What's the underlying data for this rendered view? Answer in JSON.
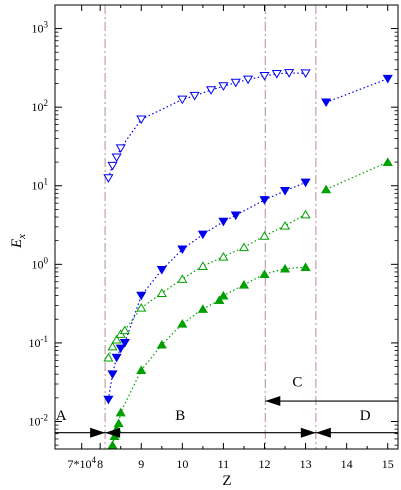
{
  "chart_data": {
    "type": "scatter",
    "title": "",
    "xlabel": "Z",
    "ylabel_main": "E",
    "ylabel_sub": "x",
    "xlim": [
      6.9,
      15.25
    ],
    "ylim_log10": [
      -2.35,
      3.3
    ],
    "log_y": true,
    "grid": false,
    "x_ticks": [
      {
        "value": 7.55,
        "label_main": "7*10",
        "label_sup": "4"
      },
      {
        "value": 8,
        "label_main": "8",
        "label_sup": ""
      },
      {
        "value": 9,
        "label_main": "9",
        "label_sup": ""
      },
      {
        "value": 10,
        "label_main": "10",
        "label_sup": ""
      },
      {
        "value": 11,
        "label_main": "11",
        "label_sup": ""
      },
      {
        "value": 12,
        "label_main": "12",
        "label_sup": ""
      },
      {
        "value": 13,
        "label_main": "13",
        "label_sup": ""
      },
      {
        "value": 14,
        "label_main": "14",
        "label_sup": ""
      },
      {
        "value": 15,
        "label_main": "15",
        "label_sup": ""
      }
    ],
    "y_ticks": [
      {
        "exp": -2,
        "label_main": "10",
        "label_sup": "-2"
      },
      {
        "exp": -1,
        "label_main": "10",
        "label_sup": "-1"
      },
      {
        "exp": 0,
        "label_main": "10",
        "label_sup": "0"
      },
      {
        "exp": 1,
        "label_main": "10",
        "label_sup": "1"
      },
      {
        "exp": 2,
        "label_main": "10",
        "label_sup": "2"
      },
      {
        "exp": 3,
        "label_main": "10",
        "label_sup": "3"
      }
    ],
    "vlines": [
      {
        "x": 8.12,
        "color": "#c4a0a8"
      },
      {
        "x": 12.02,
        "color": "#c4a0a8"
      },
      {
        "x": 13.25,
        "color": "#c4a0a8"
      }
    ],
    "series": [
      {
        "id": "blue-open-down",
        "color": "#0000ee",
        "marker": "triangle-down",
        "filled": false,
        "segments": [
          {
            "x": [
              8.2,
              8.3,
              8.4,
              8.5,
              9.0,
              10.0,
              10.3,
              10.7,
              11.0,
              11.3,
              11.6,
              12.0,
              12.3,
              12.6,
              13.0
            ],
            "y": [
              12.5,
              18,
              23,
              30,
              70,
              125,
              140,
              165,
              185,
              205,
              225,
              250,
              265,
              272,
              270
            ]
          }
        ]
      },
      {
        "id": "blue-filled-down",
        "color": "#0000ee",
        "marker": "triangle-down",
        "filled": true,
        "segments": [
          {
            "x": [
              8.2,
              8.3,
              8.4,
              8.5,
              8.6,
              9.0,
              9.5,
              10.0,
              10.5,
              11.0,
              11.3,
              12.0,
              12.5,
              13.0
            ],
            "y": [
              0.019,
              0.04,
              0.065,
              0.085,
              0.1,
              0.4,
              0.85,
              1.55,
              2.4,
              3.5,
              4.2,
              6.6,
              8.6,
              11
            ]
          },
          {
            "x": [
              13.5,
              15.0
            ],
            "y": [
              115,
              230
            ]
          }
        ]
      },
      {
        "id": "green-open-up",
        "color": "#00a000",
        "marker": "triangle-up",
        "filled": false,
        "segments": [
          {
            "x": [
              8.2,
              8.3,
              8.4,
              8.5,
              8.6,
              9.0,
              9.5,
              10.0,
              10.5,
              11.0,
              11.5,
              12.0,
              12.5,
              13.0
            ],
            "y": [
              0.065,
              0.09,
              0.11,
              0.13,
              0.145,
              0.28,
              0.43,
              0.65,
              0.95,
              1.25,
              1.65,
              2.3,
              3.1,
              4.3
            ]
          }
        ]
      },
      {
        "id": "green-filled-up",
        "color": "#00a000",
        "marker": "triangle-up",
        "filled": true,
        "segments": [
          {
            "x": [
              8.3,
              8.35,
              8.4,
              8.45,
              8.5,
              9.0,
              9.5,
              10.0,
              10.5,
              10.9,
              11.0,
              11.5,
              12.0,
              12.5,
              13.0
            ],
            "y": [
              0.005,
              0.0065,
              0.008,
              0.0095,
              0.013,
              0.045,
              0.095,
              0.175,
              0.27,
              0.35,
              0.4,
              0.55,
              0.75,
              0.88,
              0.92
            ]
          },
          {
            "x": [
              13.5,
              15.0
            ],
            "y": [
              9,
              20
            ]
          }
        ]
      }
    ],
    "regions": [
      {
        "label": "A",
        "label_x": 7.05,
        "label_y": 0.0105,
        "arrow_from": 6.9,
        "arrow_to": 8.12,
        "arrow_y": 0.0072,
        "head_at_end": true
      },
      {
        "label": "B",
        "label_x": 9.95,
        "label_y": 0.0105,
        "arrow_from": 8.12,
        "arrow_to": 13.25,
        "arrow_y": 0.0072,
        "head_at_start": true,
        "head_at_end": true
      },
      {
        "label": "C",
        "label_x": 12.8,
        "label_y": 0.028,
        "arrow_from": 15.25,
        "arrow_to": 12.02,
        "arrow_y": 0.0182,
        "head_at_end": true
      },
      {
        "label": "D",
        "label_x": 14.45,
        "label_y": 0.0105,
        "arrow_from": 15.25,
        "arrow_to": 13.25,
        "arrow_y": 0.0072,
        "head_at_end": true
      }
    ]
  }
}
